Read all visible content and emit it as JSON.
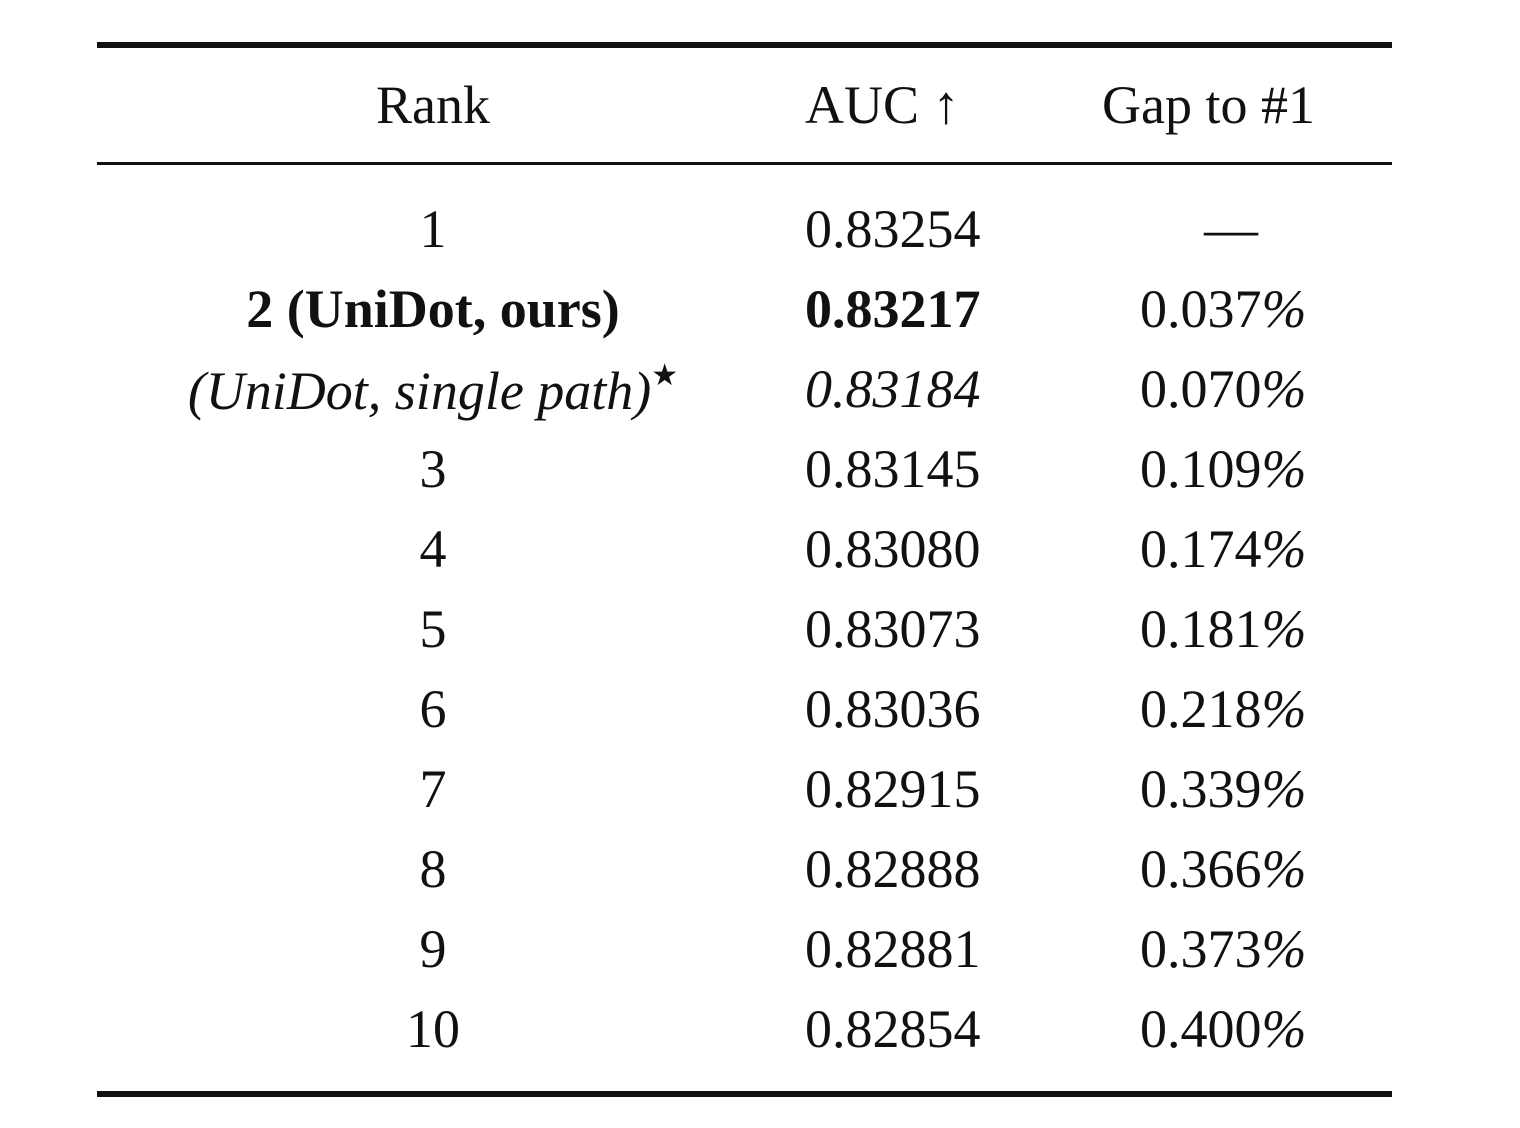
{
  "table": {
    "headers": {
      "rank": "Rank",
      "auc": "AUC ↑",
      "gap": "Gap to #1"
    },
    "rows": [
      {
        "rank": "1",
        "auc": "0.83254",
        "gap_value": "—",
        "gap_pct": "",
        "style": "normal"
      },
      {
        "rank": "2 (UniDot, ours)",
        "auc": "0.83217",
        "gap_value": "0.037",
        "gap_pct": "%",
        "style": "bold"
      },
      {
        "rank": "(UniDot, single path)",
        "rank_mark": "★",
        "auc": "0.83184",
        "gap_value": "0.070",
        "gap_pct": "%",
        "style": "italic"
      },
      {
        "rank": "3",
        "auc": "0.83145",
        "gap_value": "0.109",
        "gap_pct": "%",
        "style": "normal"
      },
      {
        "rank": "4",
        "auc": "0.83080",
        "gap_value": "0.174",
        "gap_pct": "%",
        "style": "normal"
      },
      {
        "rank": "5",
        "auc": "0.83073",
        "gap_value": "0.181",
        "gap_pct": "%",
        "style": "normal"
      },
      {
        "rank": "6",
        "auc": "0.83036",
        "gap_value": "0.218",
        "gap_pct": "%",
        "style": "normal"
      },
      {
        "rank": "7",
        "auc": "0.82915",
        "gap_value": "0.339",
        "gap_pct": "%",
        "style": "normal"
      },
      {
        "rank": "8",
        "auc": "0.82888",
        "gap_value": "0.366",
        "gap_pct": "%",
        "style": "normal"
      },
      {
        "rank": "9",
        "auc": "0.82881",
        "gap_value": "0.373",
        "gap_pct": "%",
        "style": "normal"
      },
      {
        "rank": "10",
        "auc": "0.82854",
        "gap_value": "0.400",
        "gap_pct": "%",
        "style": "normal"
      }
    ]
  }
}
